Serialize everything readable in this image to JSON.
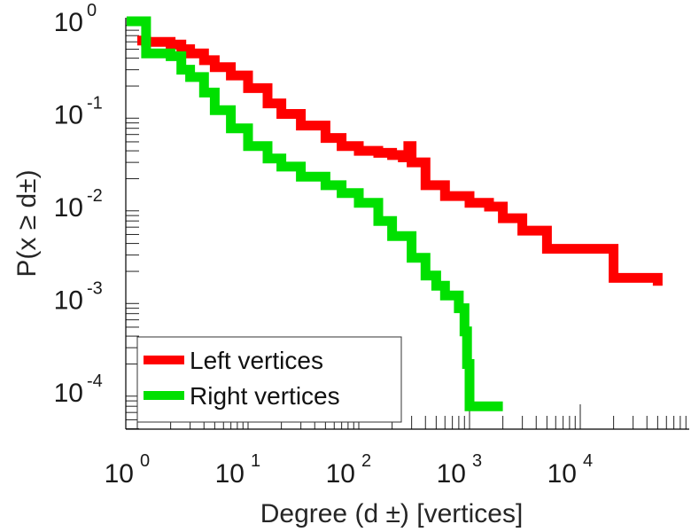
{
  "chart_data": {
    "type": "line",
    "title": "",
    "xlabel": "Degree (d  ±) [vertices]",
    "ylabel": "P(x ≥ d±)",
    "x_scale": "log",
    "y_scale": "log",
    "xlim": [
      0.7,
      60000
    ],
    "ylim": [
      5e-05,
      1.0
    ],
    "x_ticks": [
      {
        "base": "10",
        "exp": "0"
      },
      {
        "base": "10",
        "exp": "1"
      },
      {
        "base": "10",
        "exp": "2"
      },
      {
        "base": "10",
        "exp": "3"
      },
      {
        "base": "10",
        "exp": "4"
      }
    ],
    "y_ticks": [
      {
        "base": "10",
        "exp": "0"
      },
      {
        "base": "10",
        "exp": "-1"
      },
      {
        "base": "10",
        "exp": "-2"
      },
      {
        "base": "10",
        "exp": "-3"
      },
      {
        "base": "10",
        "exp": "-4"
      }
    ],
    "grid": false,
    "legend_position": "bottom-left",
    "series": [
      {
        "name": "Left vertices",
        "color": "#ff0000",
        "x": [
          1,
          1.2,
          2,
          2.5,
          3,
          4,
          5,
          7,
          10,
          15,
          20,
          30,
          50,
          70,
          100,
          150,
          200,
          250,
          280,
          300,
          400,
          600,
          1000,
          1500,
          2000,
          3000,
          5000,
          10000,
          15000,
          20000,
          50000
        ],
        "y": [
          0.62,
          0.6,
          0.56,
          0.5,
          0.45,
          0.38,
          0.32,
          0.26,
          0.19,
          0.13,
          0.1,
          0.075,
          0.055,
          0.045,
          0.04,
          0.038,
          0.036,
          0.034,
          0.045,
          0.03,
          0.017,
          0.013,
          0.011,
          0.01,
          0.0075,
          0.0055,
          0.0035,
          0.0035,
          0.0035,
          0.0017,
          0.0014
        ]
      },
      {
        "name": "Right vertices",
        "color": "#00e000",
        "x": [
          0.8,
          1,
          1.2,
          2,
          2.5,
          3,
          4,
          5,
          7,
          10,
          15,
          20,
          30,
          50,
          70,
          100,
          150,
          200,
          300,
          400,
          500,
          600,
          800,
          900,
          950,
          1000,
          2000
        ],
        "y": [
          1.0,
          1.0,
          0.45,
          0.42,
          0.3,
          0.25,
          0.17,
          0.11,
          0.07,
          0.045,
          0.033,
          0.027,
          0.021,
          0.017,
          0.014,
          0.011,
          0.007,
          0.0048,
          0.0028,
          0.0018,
          0.0014,
          0.0011,
          0.0008,
          0.00045,
          0.0002,
          7e-05,
          7e-05
        ]
      }
    ]
  }
}
